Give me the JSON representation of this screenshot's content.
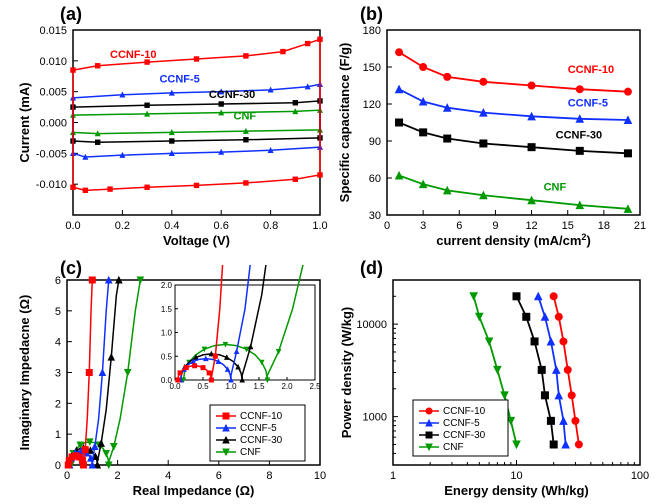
{
  "colors": {
    "red": "#ff0000",
    "blue": "#1030ff",
    "black": "#000000",
    "green": "#009a00",
    "axis": "#000000",
    "bg": "#ffffff"
  },
  "labels": {
    "a": "(a)",
    "b": "(b)",
    "c": "(c)",
    "d": "(d)",
    "voltage": "Voltage (V)",
    "current": "Current (mA)",
    "sc": "Specific capacitance (F/g)",
    "cd": "current density (mA/cm",
    "cd_sup": "2",
    "cd_end": ")",
    "ri": "Real Impedance (Ω)",
    "ii": "Imaginary Impedacne (Ω)",
    "ed": "Energy density (Wh/kg)",
    "pd": "Power density (W/kg)",
    "s10": "CCNF-10",
    "s5": "CCNF-5",
    "s30": "CCNF-30",
    "scnf": "CNF"
  },
  "panelA": {
    "xlim": [
      0,
      1
    ],
    "xticks": [
      0.0,
      0.2,
      0.4,
      0.6,
      0.8,
      1.0
    ],
    "ylim": [
      -0.015,
      0.015
    ],
    "yticks": [
      -0.01,
      -0.005,
      0.0,
      0.005,
      0.01,
      0.015
    ],
    "series": {
      "CCNF-10": {
        "color": "red",
        "marker": "sq",
        "top": [
          [
            0,
            0.0085
          ],
          [
            0.1,
            0.0092
          ],
          [
            0.3,
            0.0098
          ],
          [
            0.5,
            0.0103
          ],
          [
            0.7,
            0.0108
          ],
          [
            0.85,
            0.0115
          ],
          [
            0.95,
            0.0128
          ],
          [
            1,
            0.0135
          ]
        ],
        "bot": [
          [
            1,
            -0.0085
          ],
          [
            0.9,
            -0.0092
          ],
          [
            0.7,
            -0.0098
          ],
          [
            0.5,
            -0.0102
          ],
          [
            0.3,
            -0.0105
          ],
          [
            0.15,
            -0.0108
          ],
          [
            0.05,
            -0.011
          ],
          [
            0,
            -0.0105
          ]
        ]
      },
      "CCNF-5": {
        "color": "blue",
        "marker": "tri",
        "top": [
          [
            0,
            0.004
          ],
          [
            0.2,
            0.0045
          ],
          [
            0.4,
            0.0048
          ],
          [
            0.6,
            0.005
          ],
          [
            0.8,
            0.0053
          ],
          [
            0.95,
            0.0058
          ],
          [
            1,
            0.0062
          ]
        ],
        "bot": [
          [
            1,
            -0.004
          ],
          [
            0.8,
            -0.0045
          ],
          [
            0.6,
            -0.0048
          ],
          [
            0.4,
            -0.005
          ],
          [
            0.2,
            -0.0053
          ],
          [
            0.05,
            -0.0056
          ],
          [
            0,
            -0.005
          ]
        ]
      },
      "CCNF-30": {
        "color": "black",
        "marker": "sq",
        "top": [
          [
            0,
            0.0025
          ],
          [
            0.3,
            0.0028
          ],
          [
            0.6,
            0.003
          ],
          [
            0.9,
            0.0032
          ],
          [
            1,
            0.0035
          ]
        ],
        "bot": [
          [
            1,
            -0.0025
          ],
          [
            0.7,
            -0.0028
          ],
          [
            0.4,
            -0.003
          ],
          [
            0.1,
            -0.0032
          ],
          [
            0,
            -0.003
          ]
        ]
      },
      "CNF": {
        "color": "green",
        "marker": "tri",
        "top": [
          [
            0,
            0.0012
          ],
          [
            0.3,
            0.0014
          ],
          [
            0.6,
            0.0016
          ],
          [
            0.9,
            0.0018
          ],
          [
            1,
            0.002
          ]
        ],
        "bot": [
          [
            1,
            -0.0012
          ],
          [
            0.7,
            -0.0014
          ],
          [
            0.4,
            -0.0016
          ],
          [
            0.1,
            -0.0018
          ],
          [
            0,
            -0.0016
          ]
        ]
      }
    }
  },
  "panelB": {
    "xlim": [
      0,
      21
    ],
    "xticks": [
      0,
      3,
      6,
      9,
      12,
      15,
      18,
      21
    ],
    "ylim": [
      30,
      180
    ],
    "yticks": [
      30,
      60,
      90,
      120,
      150,
      180
    ],
    "series": {
      "CCNF-10": {
        "color": "red",
        "marker": "circ",
        "pts": [
          [
            1,
            162
          ],
          [
            3,
            150
          ],
          [
            5,
            142
          ],
          [
            8,
            138
          ],
          [
            12,
            135
          ],
          [
            16,
            132
          ],
          [
            20,
            130
          ]
        ]
      },
      "CCNF-5": {
        "color": "blue",
        "marker": "tri",
        "pts": [
          [
            1,
            132
          ],
          [
            3,
            122
          ],
          [
            5,
            117
          ],
          [
            8,
            113
          ],
          [
            12,
            110
          ],
          [
            16,
            108
          ],
          [
            20,
            107
          ]
        ]
      },
      "CCNF-30": {
        "color": "black",
        "marker": "sq",
        "pts": [
          [
            1,
            105
          ],
          [
            3,
            97
          ],
          [
            5,
            92
          ],
          [
            8,
            88
          ],
          [
            12,
            85
          ],
          [
            16,
            82
          ],
          [
            20,
            80
          ]
        ]
      },
      "CNF": {
        "color": "green",
        "marker": "tri",
        "pts": [
          [
            1,
            62
          ],
          [
            3,
            55
          ],
          [
            5,
            50
          ],
          [
            8,
            46
          ],
          [
            12,
            42
          ],
          [
            16,
            38
          ],
          [
            20,
            35
          ]
        ]
      }
    }
  },
  "panelC": {
    "xlim": [
      0,
      10
    ],
    "xticks": [
      0,
      2,
      4,
      6,
      8,
      10
    ],
    "ylim": [
      0,
      6
    ],
    "yticks": [
      0,
      1,
      2,
      3,
      4,
      5,
      6
    ],
    "inset": {
      "xlim": [
        0,
        2.5
      ],
      "ylim": [
        0,
        2
      ],
      "xticks": [
        0.0,
        0.5,
        1.0,
        1.5,
        2.0,
        2.5
      ],
      "yticks": [
        0.0,
        0.5,
        1.0,
        1.5,
        2.0
      ]
    },
    "series": {
      "CCNF-10": {
        "color": "red",
        "marker": "sq",
        "arc": {
          "cx": 0.35,
          "r": 0.3
        },
        "tail": [
          [
            0.65,
            0.05
          ],
          [
            0.72,
            0.5
          ],
          [
            0.8,
            1.5
          ],
          [
            0.88,
            3
          ],
          [
            0.95,
            5
          ],
          [
            1,
            6
          ]
        ]
      },
      "CCNF-5": {
        "color": "blue",
        "marker": "tri",
        "arc": {
          "cx": 0.55,
          "r": 0.45
        },
        "tail": [
          [
            1,
            0.1
          ],
          [
            1.1,
            0.6
          ],
          [
            1.25,
            1.5
          ],
          [
            1.4,
            3
          ],
          [
            1.55,
            5
          ],
          [
            1.65,
            6
          ]
        ]
      },
      "CCNF-30": {
        "color": "black",
        "marker": "tri",
        "arc": {
          "cx": 0.65,
          "r": 0.55
        },
        "tail": [
          [
            1.2,
            0.1
          ],
          [
            1.35,
            0.7
          ],
          [
            1.55,
            1.8
          ],
          [
            1.75,
            3.5
          ],
          [
            1.95,
            5.5
          ],
          [
            2.05,
            6
          ]
        ]
      },
      "CNF": {
        "color": "green",
        "marker": "dtri",
        "arc": {
          "cx": 0.9,
          "r": 0.75
        },
        "tail": [
          [
            1.65,
            0.1
          ],
          [
            1.85,
            0.6
          ],
          [
            2.1,
            1.5
          ],
          [
            2.4,
            3
          ],
          [
            2.7,
            5
          ],
          [
            2.9,
            6
          ]
        ]
      }
    }
  },
  "panelD": {
    "xlim": [
      1,
      100
    ],
    "xticks": [
      1,
      10,
      100
    ],
    "xlog": true,
    "ylim": [
      300,
      30000
    ],
    "yticks": [
      1000,
      10000
    ],
    "ylog": true,
    "series": {
      "CCNF-10": {
        "color": "red",
        "marker": "circ",
        "pts": [
          [
            32,
            500
          ],
          [
            30,
            900
          ],
          [
            28,
            1700
          ],
          [
            26,
            3200
          ],
          [
            24,
            6500
          ],
          [
            22,
            12000
          ],
          [
            20,
            20000
          ]
        ]
      },
      "CCNF-5": {
        "color": "blue",
        "marker": "tri",
        "pts": [
          [
            25,
            500
          ],
          [
            24,
            900
          ],
          [
            22,
            1700
          ],
          [
            21,
            3200
          ],
          [
            19,
            6500
          ],
          [
            17,
            12000
          ],
          [
            15,
            20000
          ]
        ]
      },
      "CCNF-30": {
        "color": "black",
        "marker": "sq",
        "pts": [
          [
            20,
            500
          ],
          [
            19,
            900
          ],
          [
            17,
            1700
          ],
          [
            16,
            3200
          ],
          [
            14,
            6500
          ],
          [
            12,
            12000
          ],
          [
            10,
            20000
          ]
        ]
      },
      "CNF": {
        "color": "green",
        "marker": "dtri",
        "pts": [
          [
            10,
            500
          ],
          [
            9,
            900
          ],
          [
            8,
            1700
          ],
          [
            7,
            3200
          ],
          [
            6,
            6500
          ],
          [
            5,
            12000
          ],
          [
            4.5,
            20000
          ]
        ]
      }
    }
  }
}
